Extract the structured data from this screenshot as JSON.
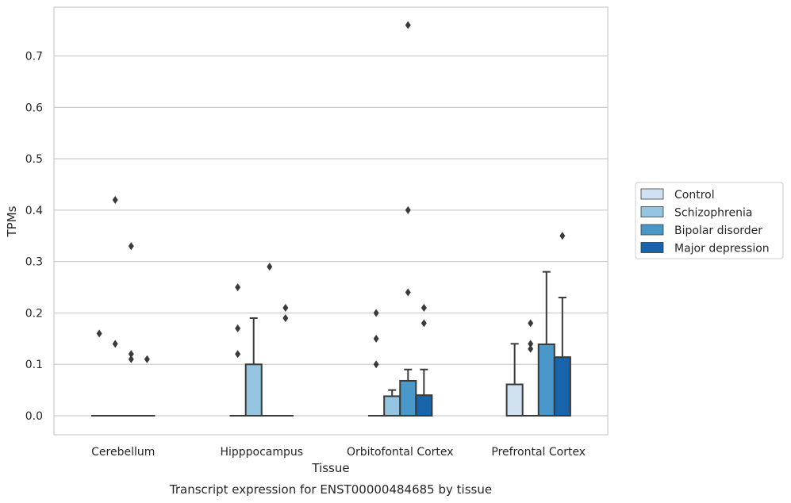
{
  "chart_data": {
    "type": "box",
    "title": "",
    "xlabel": "Tissue",
    "ylabel": "TPMs",
    "caption": "Transcript expression for ENST00000484685 by tissue",
    "ylim": [
      -0.037,
      0.795
    ],
    "yticks": [
      0.0,
      0.1,
      0.2,
      0.3,
      0.4,
      0.5,
      0.6,
      0.7
    ],
    "ytick_labels": [
      "0.0",
      "0.1",
      "0.2",
      "0.3",
      "0.4",
      "0.5",
      "0.6",
      "0.7"
    ],
    "grid": "horizontal",
    "legend_position": "right",
    "categories": [
      "Cerebellum",
      "Hipppocampus",
      "Orbitofontal Cortex",
      "Prefrontal Cortex"
    ],
    "series": [
      {
        "name": "Control",
        "color": "#d0e1f2",
        "boxes": [
          {
            "q1": 0,
            "median": 0,
            "q3": 0,
            "whisker_high": 0,
            "outliers": [
              0.16
            ]
          },
          {
            "q1": 0,
            "median": 0,
            "q3": 0,
            "whisker_high": 0,
            "outliers": [
              0.25,
              0.17,
              0.12
            ]
          },
          {
            "q1": 0,
            "median": 0,
            "q3": 0,
            "whisker_high": 0,
            "outliers": [
              0.2,
              0.15,
              0.1
            ]
          },
          {
            "q1": 0,
            "median": 0,
            "q3": 0.061,
            "whisker_high": 0.14,
            "outliers": []
          }
        ]
      },
      {
        "name": "Schizophrenia",
        "color": "#94c4df",
        "boxes": [
          {
            "q1": 0,
            "median": 0,
            "q3": 0,
            "whisker_high": 0,
            "outliers": [
              0.42,
              0.14
            ]
          },
          {
            "q1": 0,
            "median": 0,
            "q3": 0.1,
            "whisker_high": 0.19,
            "outliers": []
          },
          {
            "q1": 0,
            "median": 0,
            "q3": 0.038,
            "whisker_high": 0.05,
            "outliers": []
          },
          {
            "q1": 0,
            "median": 0,
            "q3": 0,
            "whisker_high": 0,
            "outliers": [
              0.18,
              0.14,
              0.13
            ]
          }
        ]
      },
      {
        "name": "Bipolar disorder",
        "color": "#4a98c9",
        "boxes": [
          {
            "q1": 0,
            "median": 0,
            "q3": 0,
            "whisker_high": 0,
            "outliers": [
              0.33,
              0.12,
              0.11
            ]
          },
          {
            "q1": 0,
            "median": 0,
            "q3": 0,
            "whisker_high": 0,
            "outliers": [
              0.29
            ]
          },
          {
            "q1": 0,
            "median": 0,
            "q3": 0.068,
            "whisker_high": 0.09,
            "outliers": [
              0.76,
              0.4,
              0.24
            ]
          },
          {
            "q1": 0,
            "median": 0,
            "q3": 0.139,
            "whisker_high": 0.28,
            "outliers": []
          }
        ]
      },
      {
        "name": "Major depression",
        "color": "#1764ab",
        "boxes": [
          {
            "q1": 0,
            "median": 0,
            "q3": 0,
            "whisker_high": 0,
            "outliers": [
              0.11
            ]
          },
          {
            "q1": 0,
            "median": 0,
            "q3": 0,
            "whisker_high": 0,
            "outliers": [
              0.21,
              0.19
            ]
          },
          {
            "q1": 0,
            "median": 0,
            "q3": 0.04,
            "whisker_high": 0.09,
            "outliers": [
              0.21,
              0.18
            ]
          },
          {
            "q1": 0,
            "median": 0,
            "q3": 0.114,
            "whisker_high": 0.23,
            "outliers": [
              0.35
            ]
          }
        ]
      }
    ]
  }
}
